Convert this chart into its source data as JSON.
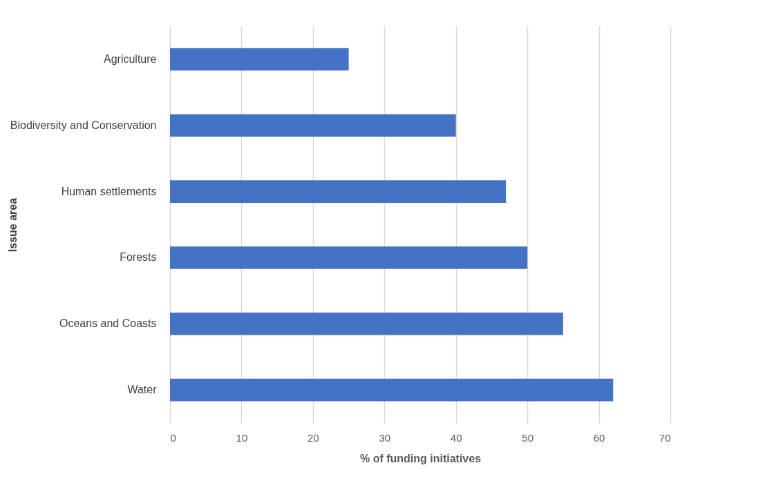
{
  "chart_data": {
    "type": "bar",
    "orientation": "horizontal",
    "xlabel": "% of funding initiatives",
    "ylabel": "Issue area",
    "categories": [
      "Agriculture",
      "Biodiversity and Conservation",
      "Human settlements",
      "Forests",
      "Oceans and Coasts",
      "Water"
    ],
    "values": [
      25,
      40,
      47,
      50,
      55,
      62
    ],
    "color": "#4472c4",
    "xlim": [
      0,
      70
    ],
    "xticks": [
      0,
      10,
      20,
      30,
      40,
      50,
      60,
      70
    ],
    "grid": "x"
  }
}
